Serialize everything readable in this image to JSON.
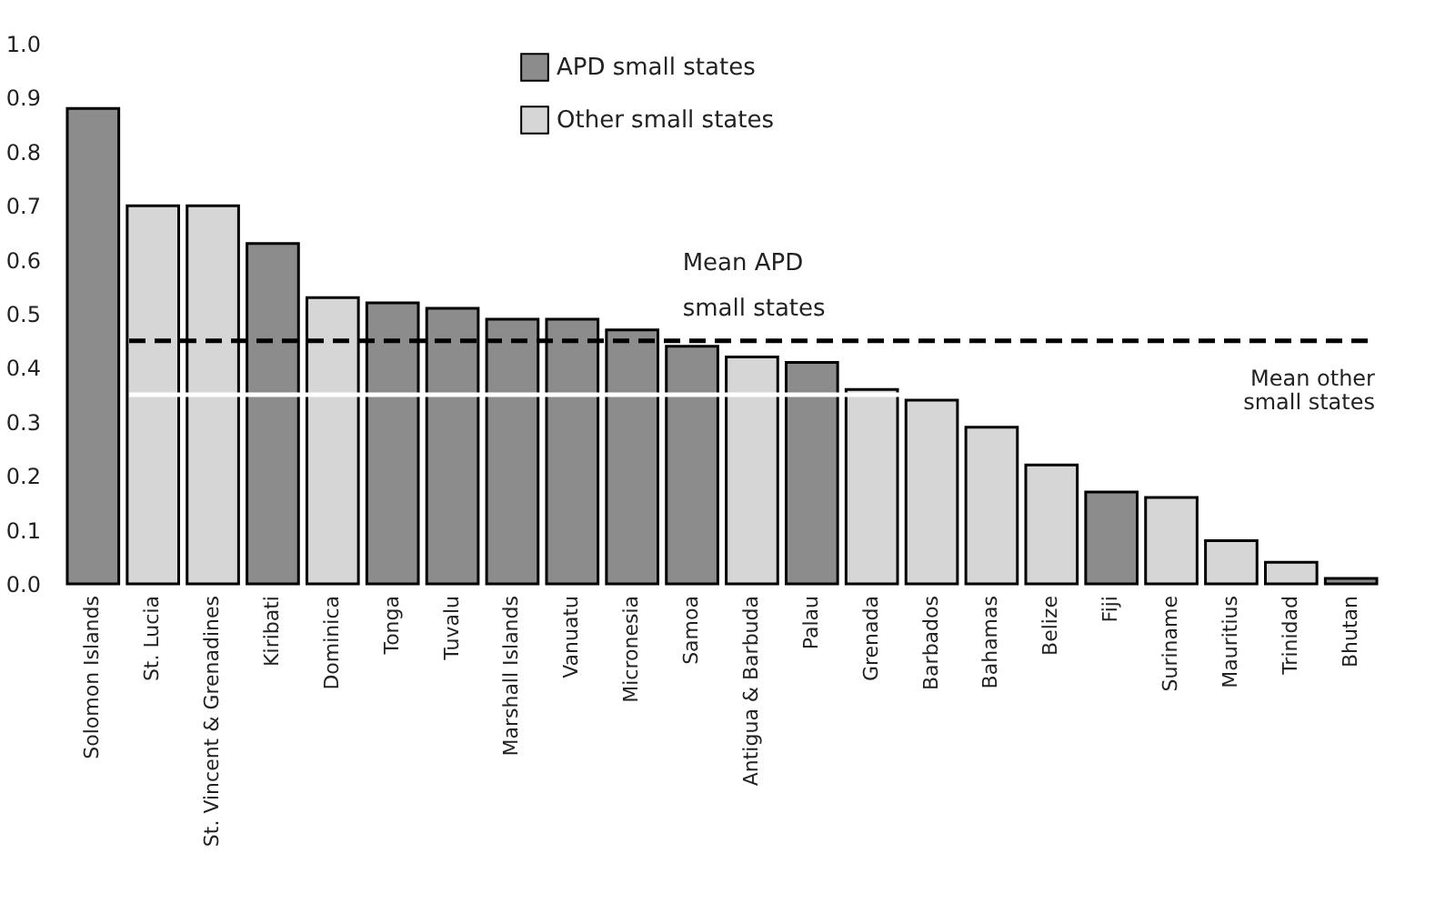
{
  "chart_data": {
    "type": "bar",
    "categories": [
      "Solomon Islands",
      "St. Lucia",
      "St. Vincent & Grenadines",
      "Kiribati",
      "Dominica",
      "Tonga",
      "Tuvalu",
      "Marshall Islands",
      "Vanuatu",
      "Micronesia",
      "Samoa",
      "Antigua & Barbuda",
      "Palau",
      "Grenada",
      "Barbados",
      "Bahamas",
      "Belize",
      "Fiji",
      "Suriname",
      "Mauritius",
      "Trinidad",
      "Bhutan"
    ],
    "series": [
      {
        "name": "APD small states",
        "color": "#8c8c8c",
        "values": [
          0.88,
          null,
          null,
          0.63,
          null,
          0.52,
          0.51,
          0.49,
          0.49,
          0.47,
          0.44,
          null,
          0.41,
          null,
          null,
          null,
          null,
          0.17,
          null,
          null,
          null,
          0.01
        ]
      },
      {
        "name": "Other small states",
        "color": "#d6d6d6",
        "values": [
          null,
          0.7,
          0.7,
          null,
          0.53,
          null,
          null,
          null,
          null,
          null,
          null,
          0.42,
          null,
          0.36,
          0.34,
          0.29,
          0.22,
          null,
          0.16,
          0.08,
          0.04,
          null
        ]
      }
    ],
    "ylim": [
      0,
      1.0
    ],
    "yticks": [
      {
        "value": 0,
        "label": "0.0"
      },
      0.1,
      0.2,
      0.3,
      0.4,
      0.5,
      0.6,
      0.7,
      0.8,
      0.9,
      {
        "value": 1,
        "label": "1.0"
      }
    ],
    "ref_lines": [
      {
        "axis": "y",
        "value": 0.45,
        "label": "Mean APD small states",
        "color": "#000000",
        "line_style": "dashed"
      },
      {
        "axis": "y",
        "value": 0.35,
        "label": "Mean other small states",
        "color": "#ffffff",
        "line_style": "solid"
      }
    ],
    "legend": "top",
    "grid": false
  }
}
